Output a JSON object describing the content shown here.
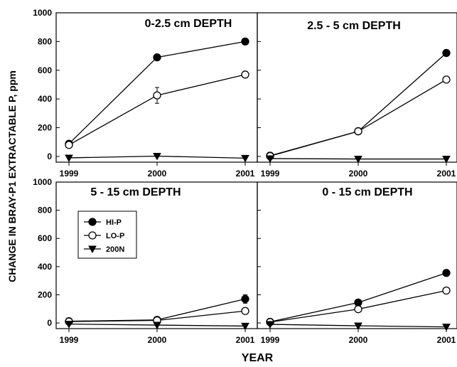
{
  "chart_data": {
    "type": "line",
    "ylabel": "CHANGE IN BRAY-P1 EXTRACTABLE P,  ppm",
    "xlabel": "YEAR",
    "x": [
      "1999",
      "2000",
      "2001"
    ],
    "ylim": [
      -40,
      1000
    ],
    "yticks": [
      0,
      200,
      400,
      600,
      800,
      1000
    ],
    "legend": {
      "placement": "inside lower-left panel, upper-left",
      "entries": [
        {
          "name": "HI-P",
          "marker": "filled-circle"
        },
        {
          "name": "LO-P",
          "marker": "open-circle"
        },
        {
          "name": "200N",
          "marker": "filled-triangle-down"
        }
      ]
    },
    "panels": [
      {
        "title": "0-2.5 cm DEPTH",
        "series": [
          {
            "name": "HI-P",
            "values": [
              88,
              690,
              800
            ]
          },
          {
            "name": "LO-P",
            "values": [
              80,
              425,
              570
            ],
            "error": [
              0,
              55,
              0
            ]
          },
          {
            "name": "200N",
            "values": [
              -10,
              2,
              -12
            ]
          }
        ]
      },
      {
        "title": "2.5 - 5 cm DEPTH",
        "series": [
          {
            "name": "HI-P",
            "values": [
              5,
              175,
              720
            ]
          },
          {
            "name": "LO-P",
            "values": [
              2,
              175,
              535
            ]
          },
          {
            "name": "200N",
            "values": [
              -15,
              -18,
              -18
            ]
          }
        ]
      },
      {
        "title": "5 - 15 cm DEPTH",
        "series": [
          {
            "name": "HI-P",
            "values": [
              12,
              22,
              170
            ],
            "error": [
              0,
              0,
              30
            ]
          },
          {
            "name": "LO-P",
            "values": [
              10,
              18,
              85
            ]
          },
          {
            "name": "200N",
            "values": [
              -8,
              -15,
              -22
            ]
          }
        ]
      },
      {
        "title": "0 - 15 cm DEPTH",
        "series": [
          {
            "name": "HI-P",
            "values": [
              8,
              145,
              355
            ]
          },
          {
            "name": "LO-P",
            "values": [
              6,
              98,
              230
            ]
          },
          {
            "name": "200N",
            "values": [
              -10,
              -20,
              -28
            ]
          }
        ]
      }
    ]
  }
}
